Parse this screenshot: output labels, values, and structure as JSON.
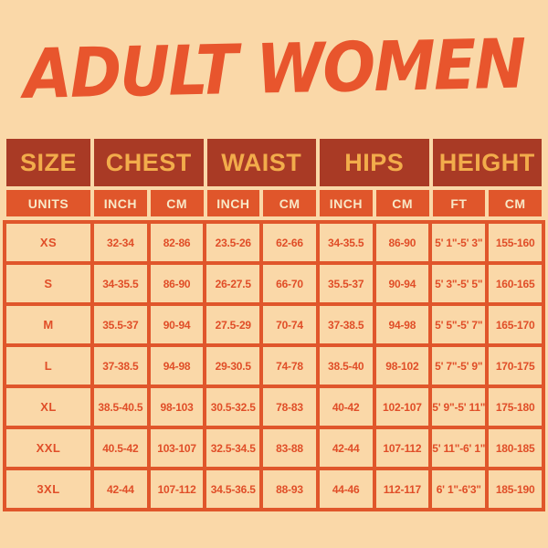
{
  "page": {
    "title": "ADULT WOMEN"
  },
  "colors": {
    "background": "#FAD8A8",
    "title": "#E8552D",
    "accent_orange": "#E0562B",
    "header_bg": "#A93A25",
    "header_text": "#F2AC4B",
    "units_text": "#F8E8C7",
    "cell_bg": "#FAD8A8",
    "cell_text": "#E04E28"
  },
  "chart_data": {
    "type": "table",
    "title": "ADULT WOMEN",
    "header": [
      "SIZE",
      "CHEST",
      "WAIST",
      "HIPS",
      "HEIGHT"
    ],
    "units": [
      "UNITS",
      "INCH",
      "CM",
      "INCH",
      "CM",
      "INCH",
      "CM",
      "FT",
      "CM"
    ],
    "rows": [
      [
        "XS",
        "32-34",
        "82-86",
        "23.5-26",
        "62-66",
        "34-35.5",
        "86-90",
        "5' 1\"-5' 3\"",
        "155-160"
      ],
      [
        "S",
        "34-35.5",
        "86-90",
        "26-27.5",
        "66-70",
        "35.5-37",
        "90-94",
        "5' 3\"-5' 5\"",
        "160-165"
      ],
      [
        "M",
        "35.5-37",
        "90-94",
        "27.5-29",
        "70-74",
        "37-38.5",
        "94-98",
        "5' 5\"-5' 7\"",
        "165-170"
      ],
      [
        "L",
        "37-38.5",
        "94-98",
        "29-30.5",
        "74-78",
        "38.5-40",
        "98-102",
        "5' 7\"-5' 9\"",
        "170-175"
      ],
      [
        "XL",
        "38.5-40.5",
        "98-103",
        "30.5-32.5",
        "78-83",
        "40-42",
        "102-107",
        "5' 9\"-5' 11\"",
        "175-180"
      ],
      [
        "XXL",
        "40.5-42",
        "103-107",
        "32.5-34.5",
        "83-88",
        "42-44",
        "107-112",
        "5' 11\"-6' 1\"",
        "180-185"
      ],
      [
        "3XL",
        "42-44",
        "107-112",
        "34.5-36.5",
        "88-93",
        "44-46",
        "112-117",
        "6' 1\"-6'3\"",
        "185-190"
      ]
    ]
  }
}
